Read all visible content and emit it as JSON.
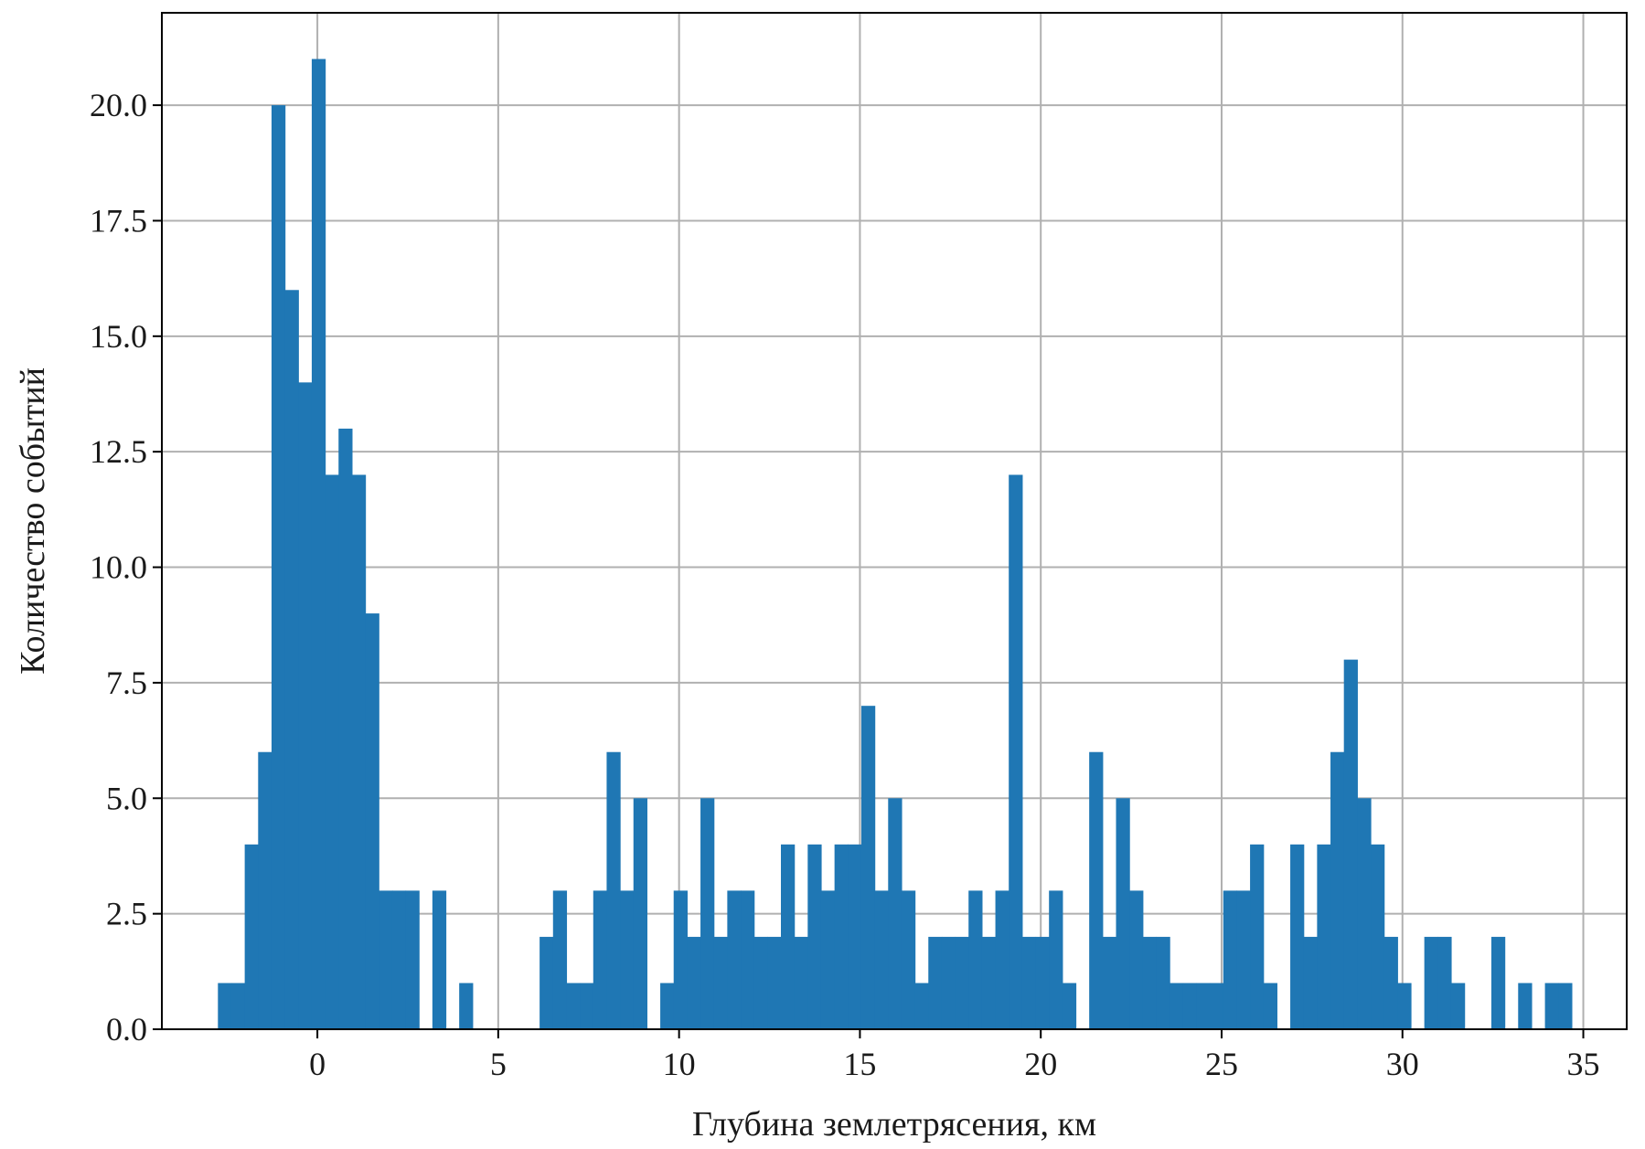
{
  "chart_data": {
    "type": "bar",
    "subtype": "histogram",
    "title": "",
    "xlabel": "Глубина землетрясения, км",
    "ylabel": "Количество событий",
    "xlim": [
      -4.3,
      36.2
    ],
    "ylim": [
      0,
      22
    ],
    "xticks": [
      0,
      5,
      10,
      15,
      20,
      25,
      30,
      35
    ],
    "xtick_labels": [
      "0",
      "5",
      "10",
      "15",
      "20",
      "25",
      "30",
      "35"
    ],
    "yticks": [
      0,
      2.5,
      5,
      7.5,
      10,
      12.5,
      15,
      17.5,
      20
    ],
    "ytick_labels": [
      "0.0",
      "2.5",
      "5.0",
      "7.5",
      "10.0",
      "12.5",
      "15.0",
      "17.5",
      "20.0"
    ],
    "grid": true,
    "bar_color": "#1f77b4",
    "grid_color": "#b0b0b0",
    "bin_start": -2.75,
    "bin_width": 0.3706,
    "counts": [
      1,
      1,
      4,
      6,
      20,
      16,
      14,
      21,
      12,
      13,
      12,
      9,
      3,
      3,
      3,
      0,
      3,
      0,
      1,
      0,
      0,
      0,
      0,
      0,
      2,
      3,
      1,
      1,
      3,
      6,
      3,
      5,
      0,
      1,
      3,
      2,
      5,
      2,
      3,
      3,
      2,
      2,
      4,
      2,
      4,
      3,
      4,
      4,
      7,
      3,
      5,
      3,
      1,
      2,
      2,
      2,
      3,
      2,
      3,
      12,
      2,
      2,
      3,
      1,
      0,
      6,
      2,
      5,
      3,
      2,
      2,
      1,
      1,
      1,
      1,
      3,
      3,
      4,
      1,
      0,
      4,
      2,
      4,
      6,
      8,
      5,
      4,
      2,
      1,
      0,
      2,
      2,
      1,
      0,
      0,
      2,
      0,
      1,
      0,
      1,
      1
    ]
  }
}
